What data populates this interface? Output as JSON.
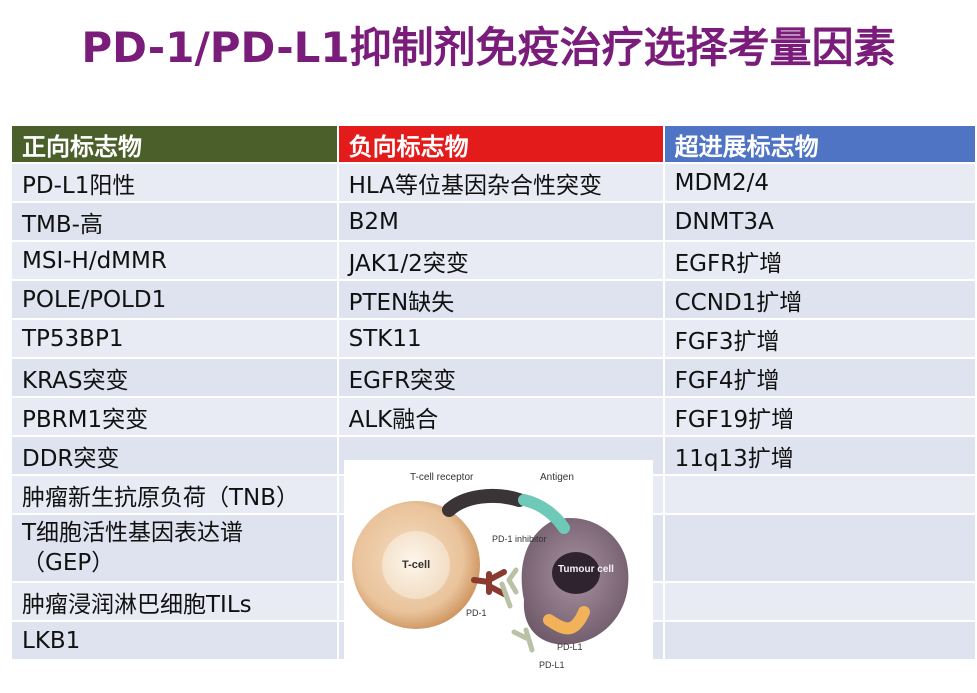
{
  "title": "PD-1/PD-L1抑制剂免疫治疗选择考量因素",
  "headers": [
    "正向标志物",
    "负向标志物",
    "超进展标志物"
  ],
  "rows": [
    [
      "PD-L1阳性",
      "HLA等位基因杂合性突变",
      "MDM2/4"
    ],
    [
      "TMB-高",
      "B2M",
      "DNMT3A"
    ],
    [
      "MSI-H/dMMR",
      "JAK1/2突变",
      "EGFR扩增"
    ],
    [
      "POLE/POLD1",
      "PTEN缺失",
      "CCND1扩增"
    ],
    [
      "TP53BP1",
      "STK11",
      "FGF3扩增"
    ],
    [
      "KRAS突变",
      "EGFR突变",
      "FGF4扩增"
    ],
    [
      "PBRM1突变",
      "ALK融合",
      "FGF19扩增"
    ],
    [
      "DDR突变",
      "",
      "11q13扩增"
    ],
    [
      "肿瘤新生抗原负荷（TNB）",
      "",
      ""
    ],
    [
      "T细胞活性基因表达谱\n（GEP）",
      "",
      ""
    ],
    [
      "肿瘤浸润淋巴细胞TILs",
      "",
      ""
    ],
    [
      "LKB1",
      "",
      ""
    ]
  ],
  "diagram": {
    "tcell_receptor": "T-cell receptor",
    "antigen": "Antigen",
    "pd1_inhibitor": "PD-1 inhibitor",
    "tcell": "T-cell",
    "tumour_cell": "Tumour cell",
    "pd1": "PD-1",
    "pdl1_a": "PD-L1",
    "pdl1_b": "PD-L1"
  }
}
